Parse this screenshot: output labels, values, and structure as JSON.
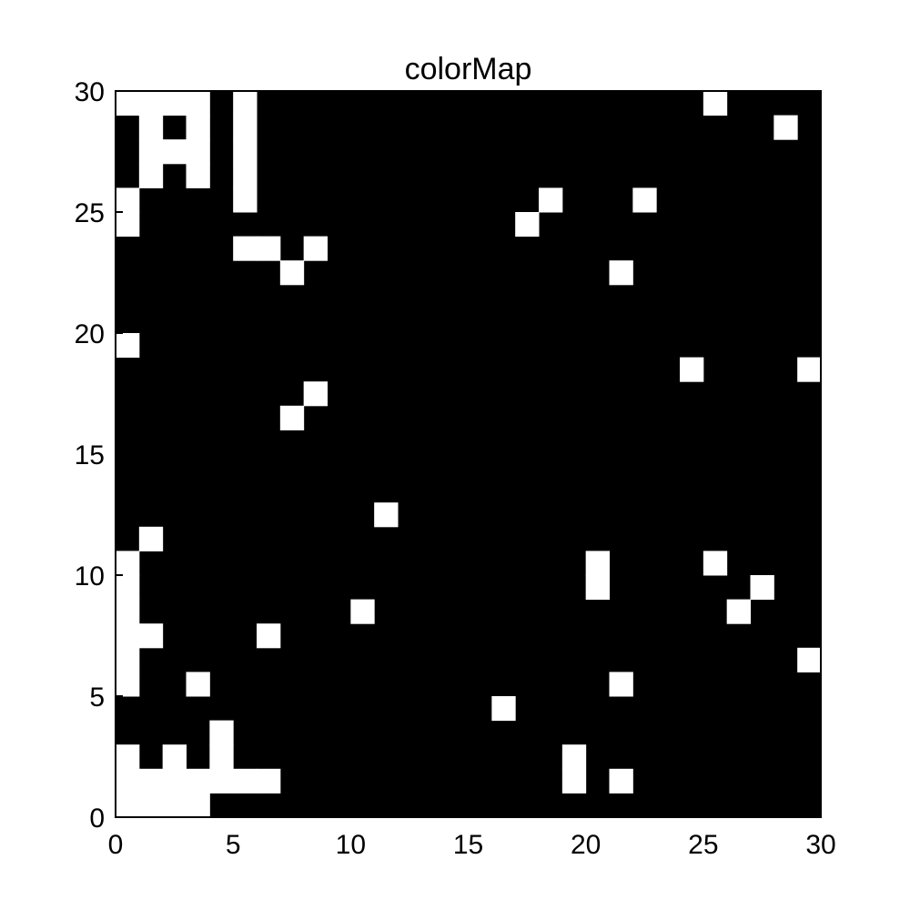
{
  "chart_data": {
    "type": "heatmap",
    "title": "colorMap",
    "xlabel": "",
    "ylabel": "",
    "xlim": [
      0,
      30
    ],
    "ylim": [
      0,
      30
    ],
    "x_ticks": [
      0,
      5,
      10,
      15,
      20,
      25,
      30
    ],
    "y_ticks": [
      0,
      5,
      10,
      15,
      20,
      25,
      30
    ],
    "background_color": "#000000",
    "cell_color": "#ffffff",
    "grid": false,
    "cell_size": 1,
    "cells": [
      [
        0,
        29
      ],
      [
        1,
        29
      ],
      [
        2,
        29
      ],
      [
        3,
        29
      ],
      [
        5,
        29
      ],
      [
        1,
        28
      ],
      [
        3,
        28
      ],
      [
        5,
        28
      ],
      [
        1,
        27
      ],
      [
        2,
        27
      ],
      [
        3,
        27
      ],
      [
        5,
        27
      ],
      [
        1,
        26
      ],
      [
        3,
        26
      ],
      [
        5,
        26
      ],
      [
        0,
        25
      ],
      [
        5,
        25
      ],
      [
        0,
        24
      ],
      [
        5,
        23
      ],
      [
        6,
        23
      ],
      [
        8,
        23
      ],
      [
        7,
        22
      ],
      [
        0,
        19
      ],
      [
        8,
        17
      ],
      [
        7,
        16
      ],
      [
        11,
        12
      ],
      [
        1,
        11
      ],
      [
        0,
        10
      ],
      [
        0,
        9
      ],
      [
        10,
        8
      ],
      [
        0,
        8
      ],
      [
        0,
        7
      ],
      [
        1,
        7
      ],
      [
        6,
        7
      ],
      [
        0,
        6
      ],
      [
        3,
        5
      ],
      [
        0,
        5
      ],
      [
        16,
        4
      ],
      [
        4,
        3
      ],
      [
        0,
        2
      ],
      [
        2,
        2
      ],
      [
        4,
        2
      ],
      [
        0,
        1
      ],
      [
        1,
        1
      ],
      [
        2,
        1
      ],
      [
        3,
        1
      ],
      [
        4,
        1
      ],
      [
        5,
        1
      ],
      [
        6,
        1
      ],
      [
        0,
        0
      ],
      [
        1,
        0
      ],
      [
        2,
        0
      ],
      [
        3,
        0
      ],
      [
        25,
        29
      ],
      [
        28,
        28
      ],
      [
        18,
        25
      ],
      [
        22,
        25
      ],
      [
        17,
        24
      ],
      [
        21,
        22
      ],
      [
        24,
        18
      ],
      [
        29,
        18
      ],
      [
        20,
        10
      ],
      [
        25,
        10
      ],
      [
        20,
        9
      ],
      [
        27,
        9
      ],
      [
        26,
        8
      ],
      [
        29,
        6
      ],
      [
        21,
        5
      ],
      [
        19,
        2
      ],
      [
        19,
        1
      ],
      [
        21,
        1
      ]
    ]
  }
}
